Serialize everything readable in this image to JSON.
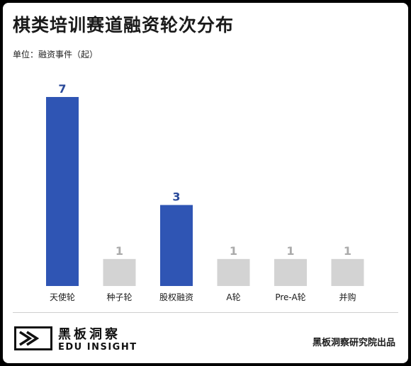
{
  "chart_data": {
    "type": "bar",
    "title": "棋类培训赛道融资轮次分布",
    "unit_label": "单位：融资事件（起）",
    "categories": [
      "天使轮",
      "种子轮",
      "股权融资",
      "A轮",
      "Pre-A轮",
      "并购"
    ],
    "values": [
      7,
      1,
      3,
      1,
      1,
      1
    ],
    "ylim": [
      0,
      7
    ],
    "grid": false,
    "colors": {
      "highlight": "#2f55b4",
      "muted": "#d3d3d3",
      "highlight_label": "#2a4a9a",
      "muted_label": "#aaaaaa"
    },
    "highlighted": [
      true,
      false,
      true,
      false,
      false,
      false
    ]
  },
  "branding": {
    "logo_cn": "黑板洞察",
    "logo_en": "EDU INSIGHT",
    "source": "黑板洞察研究院出品"
  }
}
